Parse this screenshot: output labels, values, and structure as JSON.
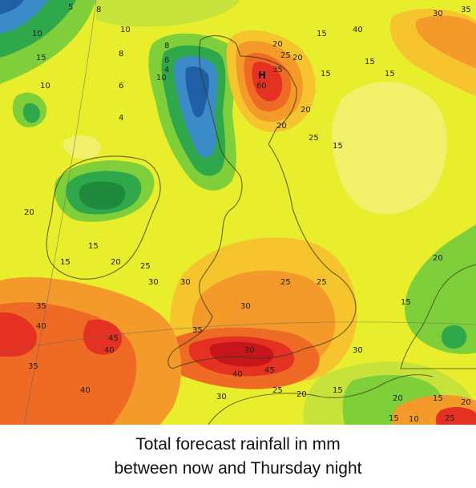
{
  "caption": {
    "line1": "Total forecast rainfall in mm",
    "line2": "between now and Thursday night"
  },
  "high_marker": {
    "letter": "H",
    "value": "60"
  },
  "contour_labels": [
    "5",
    "8",
    "10",
    "15",
    "10",
    "10",
    "8",
    "6",
    "4",
    "20",
    "25",
    "35",
    "H",
    "15",
    "20",
    "15",
    "20",
    "25",
    "20",
    "15",
    "15",
    "15",
    "10",
    "8",
    "6",
    "4",
    "20",
    "15",
    "15",
    "20",
    "25",
    "30",
    "30",
    "25",
    "20",
    "35",
    "40",
    "45",
    "40",
    "30",
    "35",
    "40",
    "45",
    "35",
    "25",
    "20",
    "15",
    "20",
    "15",
    "10",
    "15",
    "20",
    "25",
    "30",
    "35",
    "40",
    "40",
    "30",
    "15",
    "30",
    "25",
    "20"
  ],
  "colors": {
    "deep_blue": "#1f5fa8",
    "blue": "#3a8bc8",
    "green": "#2ea84a",
    "light_green": "#7fcf3a",
    "yellow_green": "#c7e23a",
    "yellow": "#f4ec2a",
    "light_orange": "#f6c52e",
    "orange": "#f39a2a",
    "dark_orange": "#ef6a24",
    "red": "#e53122",
    "dark_red": "#c7161b"
  }
}
